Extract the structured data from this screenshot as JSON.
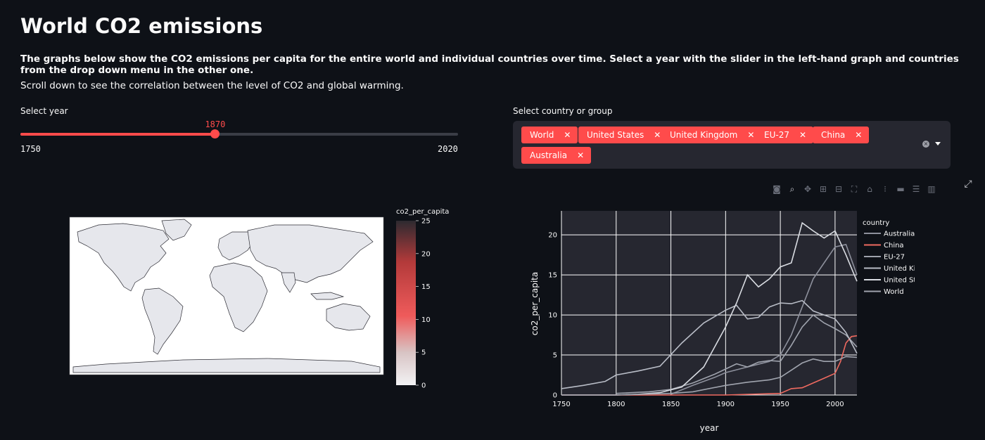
{
  "page": {
    "title": "World CO2 emissions",
    "description": "The graphs below show the CO2 emissions per capita for the entire world and individual countries over time. Select a year with the slider in the left-hand graph and countries from the drop down menu in the other one.",
    "scroll_hint": "Scroll down to see the correlation between the level of CO2 and global warming."
  },
  "slider": {
    "label": "Select year",
    "min": 1750,
    "max": 2020,
    "value": 1870,
    "min_label": "1750",
    "max_label": "2020",
    "value_label": "1870",
    "color": "#ff4b4b"
  },
  "multiselect": {
    "label": "Select country or group",
    "chips": [
      "World",
      "United States",
      "United Kingdom",
      "EU-27",
      "China",
      "Australia"
    ],
    "remove_glyph": "✕"
  },
  "toolbar": {
    "icons": [
      "camera-icon",
      "zoom-icon",
      "pan-icon",
      "zoom-in-icon",
      "zoom-out-icon",
      "autoscale-icon",
      "reset-axes-icon",
      "spike-lines-icon",
      "hover-closest-icon",
      "hover-compare-icon",
      "plotly-logo-icon"
    ]
  },
  "map": {
    "colorbar_title": "co2_per_capita",
    "colorbar_ticks": [
      "0",
      "5",
      "10",
      "15",
      "20",
      "25"
    ],
    "colorscale": [
      "#f2f2f4",
      "#d7c3c3",
      "#ef5b5b",
      "#c03a3a",
      "#3a2a2e"
    ]
  },
  "chart_data": {
    "type": "line",
    "xlabel": "year",
    "ylabel": "co2_per_capita",
    "xlim": [
      1750,
      2020
    ],
    "ylim": [
      0,
      23
    ],
    "xticks": [
      1750,
      1800,
      1850,
      1900,
      1950,
      2000
    ],
    "yticks": [
      0,
      5,
      10,
      15,
      20
    ],
    "legend_title": "country",
    "legend_position": "right",
    "grid": true,
    "series": [
      {
        "name": "Australia",
        "color": "#8d909c",
        "x": [
          1850,
          1870,
          1890,
          1900,
          1920,
          1940,
          1950,
          1960,
          1970,
          1980,
          1990,
          2000,
          2010,
          2020
        ],
        "y": [
          0.1,
          1.2,
          2.2,
          2.8,
          3.5,
          4.2,
          5.0,
          7.5,
          11.0,
          14.5,
          16.5,
          18.5,
          18.8,
          15.0
        ]
      },
      {
        "name": "China",
        "color": "#ef6a60",
        "x": [
          1750,
          1900,
          1950,
          1960,
          1970,
          1980,
          1990,
          2000,
          2005,
          2010,
          2015,
          2020
        ],
        "y": [
          0,
          0,
          0.2,
          0.8,
          0.9,
          1.5,
          2.1,
          2.7,
          4.2,
          6.5,
          7.3,
          7.4
        ]
      },
      {
        "name": "EU-27",
        "color": "#9fa3ad",
        "x": [
          1800,
          1830,
          1850,
          1870,
          1890,
          1910,
          1920,
          1930,
          1940,
          1950,
          1960,
          1970,
          1980,
          1990,
          2000,
          2010,
          2020
        ],
        "y": [
          0.2,
          0.4,
          0.7,
          1.5,
          2.6,
          3.9,
          3.5,
          4.1,
          4.3,
          4.2,
          6.2,
          8.5,
          10.0,
          9.0,
          8.3,
          7.5,
          6.0
        ]
      },
      {
        "name": "United Kingdom",
        "color": "#b8bcc6",
        "x": [
          1750,
          1770,
          1790,
          1800,
          1820,
          1840,
          1860,
          1880,
          1900,
          1910,
          1920,
          1930,
          1940,
          1950,
          1960,
          1970,
          1980,
          1990,
          2000,
          2010,
          2020
        ],
        "y": [
          0.8,
          1.2,
          1.7,
          2.5,
          3.0,
          3.6,
          6.5,
          9.0,
          10.6,
          11.2,
          9.5,
          9.7,
          11.0,
          11.5,
          11.4,
          11.8,
          10.5,
          10.0,
          9.5,
          7.8,
          5.2
        ]
      },
      {
        "name": "United States",
        "color": "#d9dce2",
        "x": [
          1750,
          1800,
          1820,
          1840,
          1860,
          1880,
          1900,
          1910,
          1920,
          1930,
          1940,
          1950,
          1960,
          1970,
          1980,
          1990,
          2000,
          2010,
          2020
        ],
        "y": [
          0,
          0,
          0.1,
          0.3,
          1.0,
          3.5,
          8.5,
          11.5,
          15.0,
          13.5,
          14.5,
          16.0,
          16.5,
          21.5,
          20.5,
          19.6,
          20.5,
          17.5,
          14.2
        ]
      },
      {
        "name": "World",
        "color": "#a0a4ae",
        "x": [
          1750,
          1800,
          1850,
          1870,
          1900,
          1920,
          1940,
          1950,
          1960,
          1970,
          1980,
          1990,
          2000,
          2010,
          2020
        ],
        "y": [
          0,
          0,
          0.2,
          0.4,
          1.2,
          1.6,
          1.9,
          2.2,
          3.1,
          4.0,
          4.5,
          4.2,
          4.2,
          4.8,
          4.7
        ]
      }
    ]
  }
}
